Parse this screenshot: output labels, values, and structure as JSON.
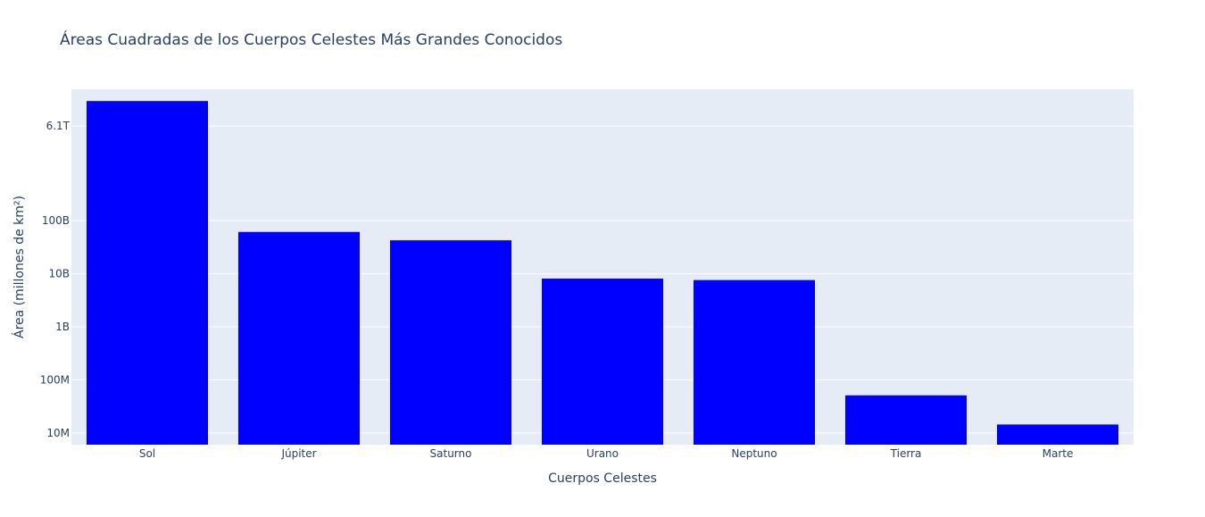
{
  "chart_data": {
    "type": "bar",
    "title": "Áreas Cuadradas de los Cuerpos Celestes Más Grandes Conocidos",
    "xlabel": "Cuerpos Celestes",
    "ylabel": "Área (millones de km²)",
    "yscale": "log",
    "ylim": [
      6000000,
      30000000000000
    ],
    "y_ticks": [
      {
        "value": 10000000,
        "label": "10M"
      },
      {
        "value": 100000000,
        "label": "100M"
      },
      {
        "value": 1000000000,
        "label": "1B"
      },
      {
        "value": 10000000000,
        "label": "10B"
      },
      {
        "value": 100000000000,
        "label": "100B"
      },
      {
        "value": 6100000000000,
        "label": "6.1T"
      }
    ],
    "categories": [
      "Sol",
      "Júpiter",
      "Saturno",
      "Urano",
      "Neptuno",
      "Tierra",
      "Marte"
    ],
    "values": [
      18000000000000,
      61400000000,
      42700000000,
      8100000000,
      7600000000,
      51000000,
      14400000
    ],
    "bar_color": "#0000ff",
    "plot_background": "#e5ecf6",
    "grid": true,
    "legend": "none"
  }
}
